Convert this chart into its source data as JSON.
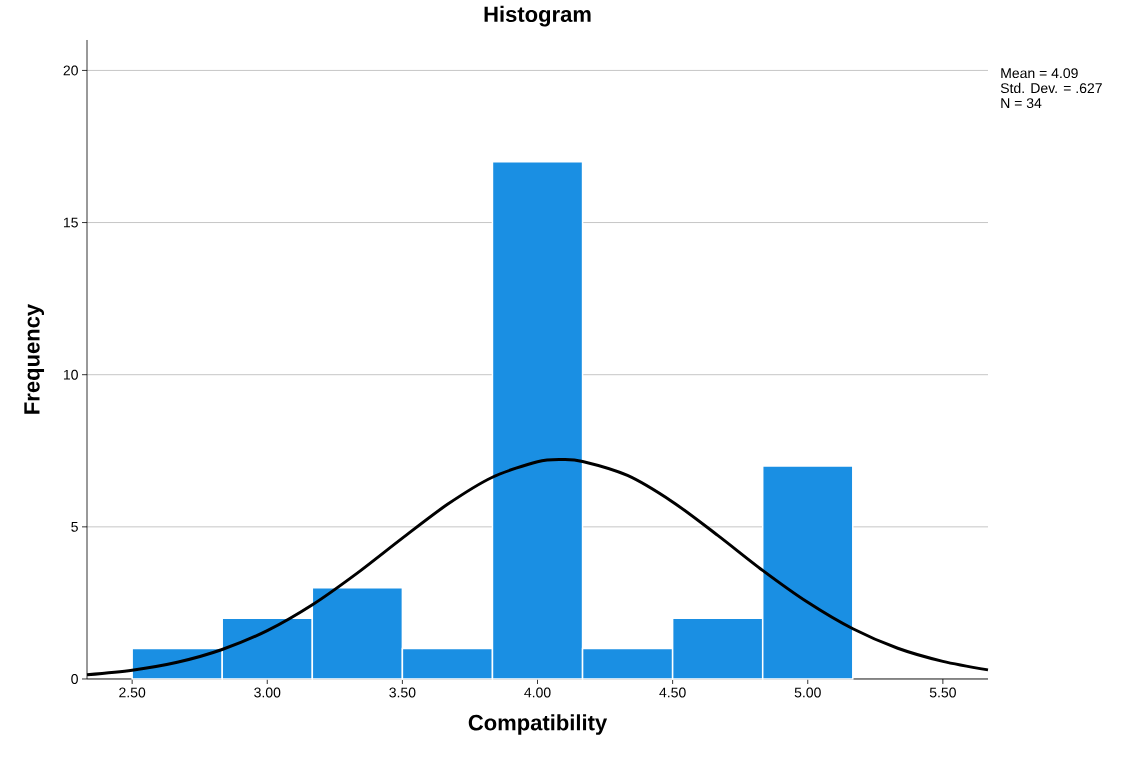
{
  "chart_data": {
    "type": "histogram",
    "title": "Histogram",
    "xlabel": "Compatibility",
    "ylabel": "Frequency",
    "series": [
      {
        "bins": [
          2.5,
          2.8333,
          3.1667,
          3.5,
          3.8333,
          4.1667,
          4.5,
          4.8333,
          5.1667
        ],
        "values": [
          1,
          2,
          3,
          1,
          17,
          1,
          2,
          7
        ],
        "color": "#1a8fe3"
      },
      {
        "type": "line",
        "x": [
          2.333,
          2.5,
          2.667,
          2.833,
          3.0,
          3.167,
          3.333,
          3.5,
          3.667,
          3.833,
          4.0,
          4.09,
          4.167,
          4.333,
          4.5,
          4.667,
          4.833,
          5.0,
          5.167,
          5.333,
          5.5,
          5.667
        ],
        "values": [
          0.14,
          0.29,
          0.55,
          0.97,
          1.59,
          2.44,
          3.48,
          4.63,
          5.74,
          6.63,
          7.14,
          7.21,
          7.15,
          6.69,
          5.82,
          4.72,
          3.57,
          2.52,
          1.65,
          1.01,
          0.58,
          0.3
        ],
        "color": "#000000"
      }
    ],
    "xlim": [
      2.333,
      5.667
    ],
    "ylim": [
      0,
      21
    ],
    "xticks": [
      {
        "value": 2.5,
        "label": "2.50"
      },
      {
        "value": 3.0,
        "label": "3.00"
      },
      {
        "value": 3.5,
        "label": "3.50"
      },
      {
        "value": 4.0,
        "label": "4.00"
      },
      {
        "value": 4.5,
        "label": "4.50"
      },
      {
        "value": 5.0,
        "label": "5.00"
      },
      {
        "value": 5.5,
        "label": "5.50"
      }
    ],
    "yticks": [
      0,
      5,
      10,
      15,
      20
    ],
    "grid": "y",
    "annotations": [
      "Mean = 4.09",
      "Std. Dev. = .627",
      "N = 34"
    ]
  }
}
